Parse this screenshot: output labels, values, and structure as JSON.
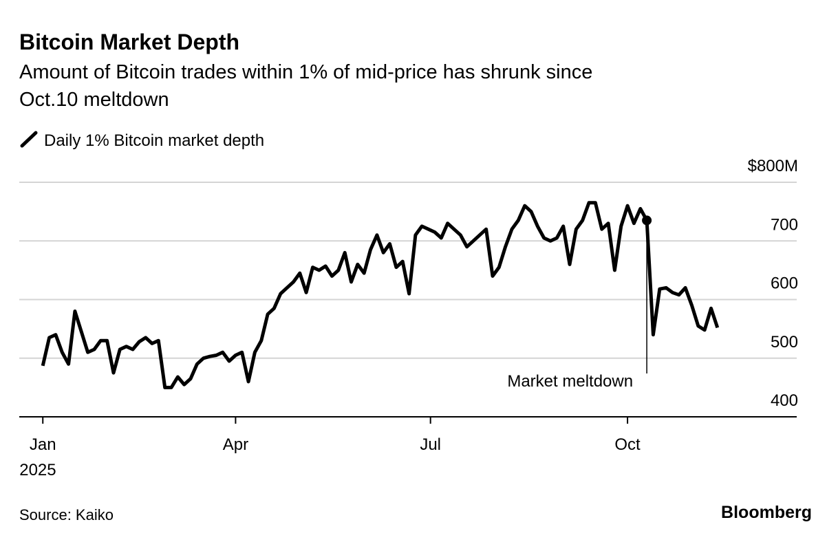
{
  "chart_data": {
    "type": "line",
    "title": "Bitcoin Market Depth",
    "subtitle": [
      "Amount of Bitcoin trades within 1% of mid-price has shrunk since",
      "Oct.10 meltdown"
    ],
    "source": "Source: Kaiko",
    "brand": "Bloomberg",
    "x": [
      "2025-01-01",
      "2025-01-04",
      "2025-01-07",
      "2025-01-10",
      "2025-01-13",
      "2025-01-16",
      "2025-01-19",
      "2025-01-22",
      "2025-01-25",
      "2025-01-28",
      "2025-01-31",
      "2025-02-03",
      "2025-02-06",
      "2025-02-09",
      "2025-02-12",
      "2025-02-15",
      "2025-02-18",
      "2025-02-21",
      "2025-02-24",
      "2025-02-27",
      "2025-03-02",
      "2025-03-05",
      "2025-03-08",
      "2025-03-11",
      "2025-03-14",
      "2025-03-17",
      "2025-03-20",
      "2025-03-23",
      "2025-03-26",
      "2025-03-29",
      "2025-04-01",
      "2025-04-04",
      "2025-04-07",
      "2025-04-10",
      "2025-04-13",
      "2025-04-16",
      "2025-04-19",
      "2025-04-22",
      "2025-04-25",
      "2025-04-28",
      "2025-05-01",
      "2025-05-04",
      "2025-05-07",
      "2025-05-10",
      "2025-05-13",
      "2025-05-16",
      "2025-05-19",
      "2025-05-22",
      "2025-05-25",
      "2025-05-28",
      "2025-05-31",
      "2025-06-03",
      "2025-06-06",
      "2025-06-09",
      "2025-06-12",
      "2025-06-15",
      "2025-06-18",
      "2025-06-21",
      "2025-06-24",
      "2025-06-27",
      "2025-06-30",
      "2025-07-03",
      "2025-07-06",
      "2025-07-09",
      "2025-07-12",
      "2025-07-15",
      "2025-07-18",
      "2025-07-21",
      "2025-07-24",
      "2025-07-27",
      "2025-07-30",
      "2025-08-02",
      "2025-08-05",
      "2025-08-08",
      "2025-08-11",
      "2025-08-14",
      "2025-08-17",
      "2025-08-20",
      "2025-08-23",
      "2025-08-26",
      "2025-08-29",
      "2025-09-01",
      "2025-09-04",
      "2025-09-07",
      "2025-09-10",
      "2025-09-13",
      "2025-09-16",
      "2025-09-19",
      "2025-09-22",
      "2025-09-25",
      "2025-09-28",
      "2025-10-01",
      "2025-10-04",
      "2025-10-07",
      "2025-10-10",
      "2025-10-13",
      "2025-10-16",
      "2025-10-19",
      "2025-10-22",
      "2025-10-25",
      "2025-10-28",
      "2025-10-31",
      "2025-11-03",
      "2025-11-06",
      "2025-11-09",
      "2025-11-12"
    ],
    "series": [
      {
        "name": "Daily 1% Bitcoin market depth",
        "color": "#000000",
        "values": [
          487,
          535,
          540,
          510,
          490,
          580,
          545,
          510,
          515,
          530,
          530,
          475,
          515,
          520,
          515,
          528,
          535,
          525,
          530,
          450,
          450,
          468,
          455,
          465,
          490,
          500,
          503,
          505,
          510,
          495,
          505,
          510,
          460,
          510,
          530,
          575,
          585,
          610,
          620,
          630,
          645,
          612,
          655,
          650,
          657,
          640,
          650,
          680,
          630,
          660,
          645,
          685,
          710,
          680,
          695,
          655,
          665,
          610,
          710,
          725,
          720,
          715,
          705,
          730,
          720,
          710,
          690,
          700,
          710,
          720,
          640,
          655,
          690,
          720,
          735,
          760,
          750,
          725,
          705,
          700,
          705,
          725,
          660,
          720,
          735,
          765,
          765,
          720,
          730,
          650,
          725,
          760,
          730,
          755,
          735,
          540,
          618,
          620,
          612,
          608,
          620,
          590,
          555,
          548,
          585,
          552
        ]
      }
    ],
    "annotation": {
      "text": "Market meltdown",
      "x": "2025-10-10"
    },
    "xlim": [
      "2024-12-21",
      "2025-12-19"
    ],
    "xticks": [
      {
        "value": "2025-01-01",
        "label": "Jan"
      },
      {
        "value": "2025-04-01",
        "label": "Apr"
      },
      {
        "value": "2025-07-01",
        "label": "Jul"
      },
      {
        "value": "2025-10-01",
        "label": "Oct"
      }
    ],
    "x_year_label": "2025",
    "ylim": [
      400,
      800
    ],
    "yticks": [
      400,
      500,
      600,
      700,
      {
        "value": 800,
        "label": "$800M"
      }
    ],
    "grid": true
  }
}
